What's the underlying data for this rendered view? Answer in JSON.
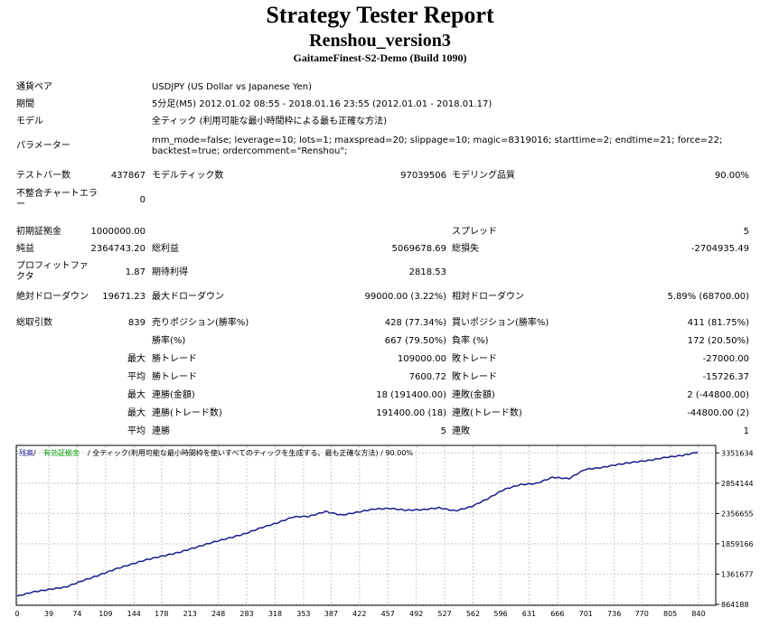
{
  "header": {
    "title": "Strategy Tester Report",
    "subtitle": "Renshou_version3",
    "server": "GaitameFinest-S2-Demo (Build 1090)"
  },
  "info": {
    "symbol_label": "通貨ペア",
    "symbol_value": "USDJPY (US Dollar vs Japanese Yen)",
    "period_label": "期間",
    "period_value": "5分足(M5) 2012.01.02 08:55 - 2018.01.16 23:55 (2012.01.01 - 2018.01.17)",
    "model_label": "モデル",
    "model_value": "全ティック (利用可能な最小時間枠による最も正確な方法)",
    "params_label": "パラメーター",
    "params_value": "mm_mode=false; leverage=10; lots=1; maxspread=20; slippage=10; magic=8319016; starttime=2; endtime=21; force=22; backtest=true; ordercomment=\"Renshou\";"
  },
  "quality": {
    "bars_label": "テストバー数",
    "bars_value": "437867",
    "ticks_label": "モデルティック数",
    "ticks_value": "97039506",
    "modeling_label": "モデリング品質",
    "modeling_value": "90.00%",
    "mismatch_label": "不整合チャートエラー",
    "mismatch_value": "0"
  },
  "results": {
    "deposit_label": "初期証拠金",
    "deposit_value": "1000000.00",
    "spread_label": "スプレッド",
    "spread_value": "5",
    "net_label": "純益",
    "net_value": "2364743.20",
    "gross_profit_label": "総利益",
    "gross_profit_value": "5069678.69",
    "gross_loss_label": "総損失",
    "gross_loss_value": "-2704935.49",
    "pf_label": "プロフィットファクタ",
    "pf_value": "1.87",
    "expected_label": "期待利得",
    "expected_value": "2818.53",
    "abs_dd_label": "絶対ドローダウン",
    "abs_dd_value": "19671.23",
    "max_dd_label": "最大ドローダウン",
    "max_dd_value": "99000.00 (3.22%)",
    "rel_dd_label": "相対ドローダウン",
    "rel_dd_value": "5.89% (68700.00)"
  },
  "trades": {
    "total_label": "総取引数",
    "total_value": "839",
    "short_label": "売りポジション(勝率%)",
    "short_value": "428 (77.34%)",
    "long_label": "買いポジション(勝率%)",
    "long_value": "411 (81.75%)",
    "win_rate_label": "勝率(%)",
    "win_rate_value": "667 (79.50%)",
    "loss_rate_label": "負率 (%)",
    "loss_rate_value": "172 (20.50%)",
    "max_prefix": "最大",
    "avg_prefix": "平均",
    "largest_win_label": "勝トレード",
    "largest_win_value": "109000.00",
    "largest_loss_label": "敗トレード",
    "largest_loss_value": "-27000.00",
    "avg_win_label": "勝トレード",
    "avg_win_value": "7600.72",
    "avg_loss_label": "敗トレード",
    "avg_loss_value": "-15726.37",
    "cons_wins_money_label": "連勝(金額)",
    "cons_wins_money_value": "18 (191400.00)",
    "cons_losses_money_label": "連敗(金額)",
    "cons_losses_money_value": "2 (-44800.00)",
    "cons_wins_count_label": "連勝(トレード数)",
    "cons_wins_count_value": "191400.00 (18)",
    "cons_losses_count_label": "連敗(トレード数)",
    "cons_losses_count_value": "-44800.00 (2)",
    "avg_cons_wins_label": "連勝",
    "avg_cons_wins_value": "5",
    "avg_cons_losses_label": "連敗",
    "avg_cons_losses_value": "1"
  },
  "colors": {
    "balance": "#1a1a8c",
    "equity": "#00a000",
    "grid": "#c8c8c8"
  },
  "chart_data": {
    "type": "line",
    "legend_balance": "残高",
    "legend_sep": " / ",
    "legend_equity": "有効証拠金",
    "legend_model": " / 全ティック(利用可能な最小時間枠を使いすべてのティックを生成する、最も正確な方法) / 90.00%",
    "ylim": [
      864188,
      3460000
    ],
    "xlim": [
      0,
      860
    ],
    "x_ticks": [
      0,
      39,
      74,
      109,
      144,
      178,
      213,
      248,
      283,
      318,
      353,
      387,
      422,
      457,
      492,
      527,
      562,
      596,
      631,
      666,
      701,
      736,
      770,
      805,
      840
    ],
    "y_ticks": [
      864188,
      1361677,
      1859166,
      2356655,
      2854144,
      3351634
    ],
    "x": [
      0,
      20,
      40,
      60,
      80,
      100,
      120,
      140,
      160,
      180,
      200,
      220,
      240,
      260,
      280,
      300,
      320,
      340,
      360,
      380,
      400,
      420,
      440,
      460,
      480,
      500,
      520,
      540,
      560,
      580,
      600,
      620,
      640,
      660,
      680,
      700,
      720,
      740,
      760,
      780,
      800,
      820,
      839
    ],
    "balance": [
      1000000,
      1070000,
      1110000,
      1150000,
      1250000,
      1340000,
      1440000,
      1520000,
      1600000,
      1660000,
      1720000,
      1800000,
      1880000,
      1950000,
      2020000,
      2120000,
      2200000,
      2300000,
      2310000,
      2390000,
      2330000,
      2380000,
      2430000,
      2440000,
      2410000,
      2420000,
      2450000,
      2400000,
      2470000,
      2600000,
      2750000,
      2830000,
      2850000,
      2950000,
      2930000,
      3080000,
      3110000,
      3160000,
      3200000,
      3230000,
      3280000,
      3310000,
      3364000
    ]
  }
}
